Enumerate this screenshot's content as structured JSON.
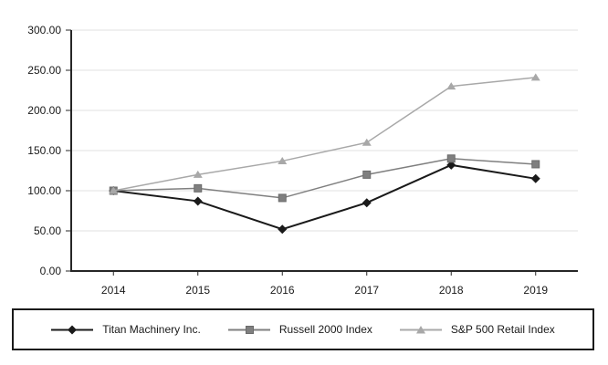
{
  "chart_data": {
    "type": "line",
    "title": "",
    "xlabel": "",
    "ylabel": "",
    "categories": [
      "2014",
      "2015",
      "2016",
      "2017",
      "2018",
      "2019"
    ],
    "series": [
      {
        "name": "Titan Machinery Inc.",
        "marker": "diamond",
        "color": "#1a1a1a",
        "values": [
          100.0,
          87.0,
          52.0,
          85.0,
          132.0,
          115.0
        ]
      },
      {
        "name": "Russell 2000 Index",
        "marker": "square",
        "color": "#7f7f7f",
        "values": [
          100.0,
          103.0,
          91.0,
          120.0,
          140.0,
          133.0
        ]
      },
      {
        "name": "S&P 500 Retail Index",
        "marker": "triangle",
        "color": "#a8a8a8",
        "values": [
          100.0,
          120.0,
          137.0,
          160.0,
          230.0,
          241.0
        ]
      }
    ],
    "ylim": [
      0,
      300
    ],
    "ytick_values": [
      0,
      50,
      100,
      150,
      200,
      250,
      300
    ],
    "ytick_labels": [
      "0.00",
      "50.00",
      "100.00",
      "150.00",
      "200.00",
      "250.00",
      "300.00"
    ],
    "grid": true,
    "legend_position": "bottom-boxed",
    "axis_color": "#262626",
    "gridline_color": "#e0e0e0",
    "text_color": "#1a1a1a",
    "background_color": "#ffffff"
  }
}
